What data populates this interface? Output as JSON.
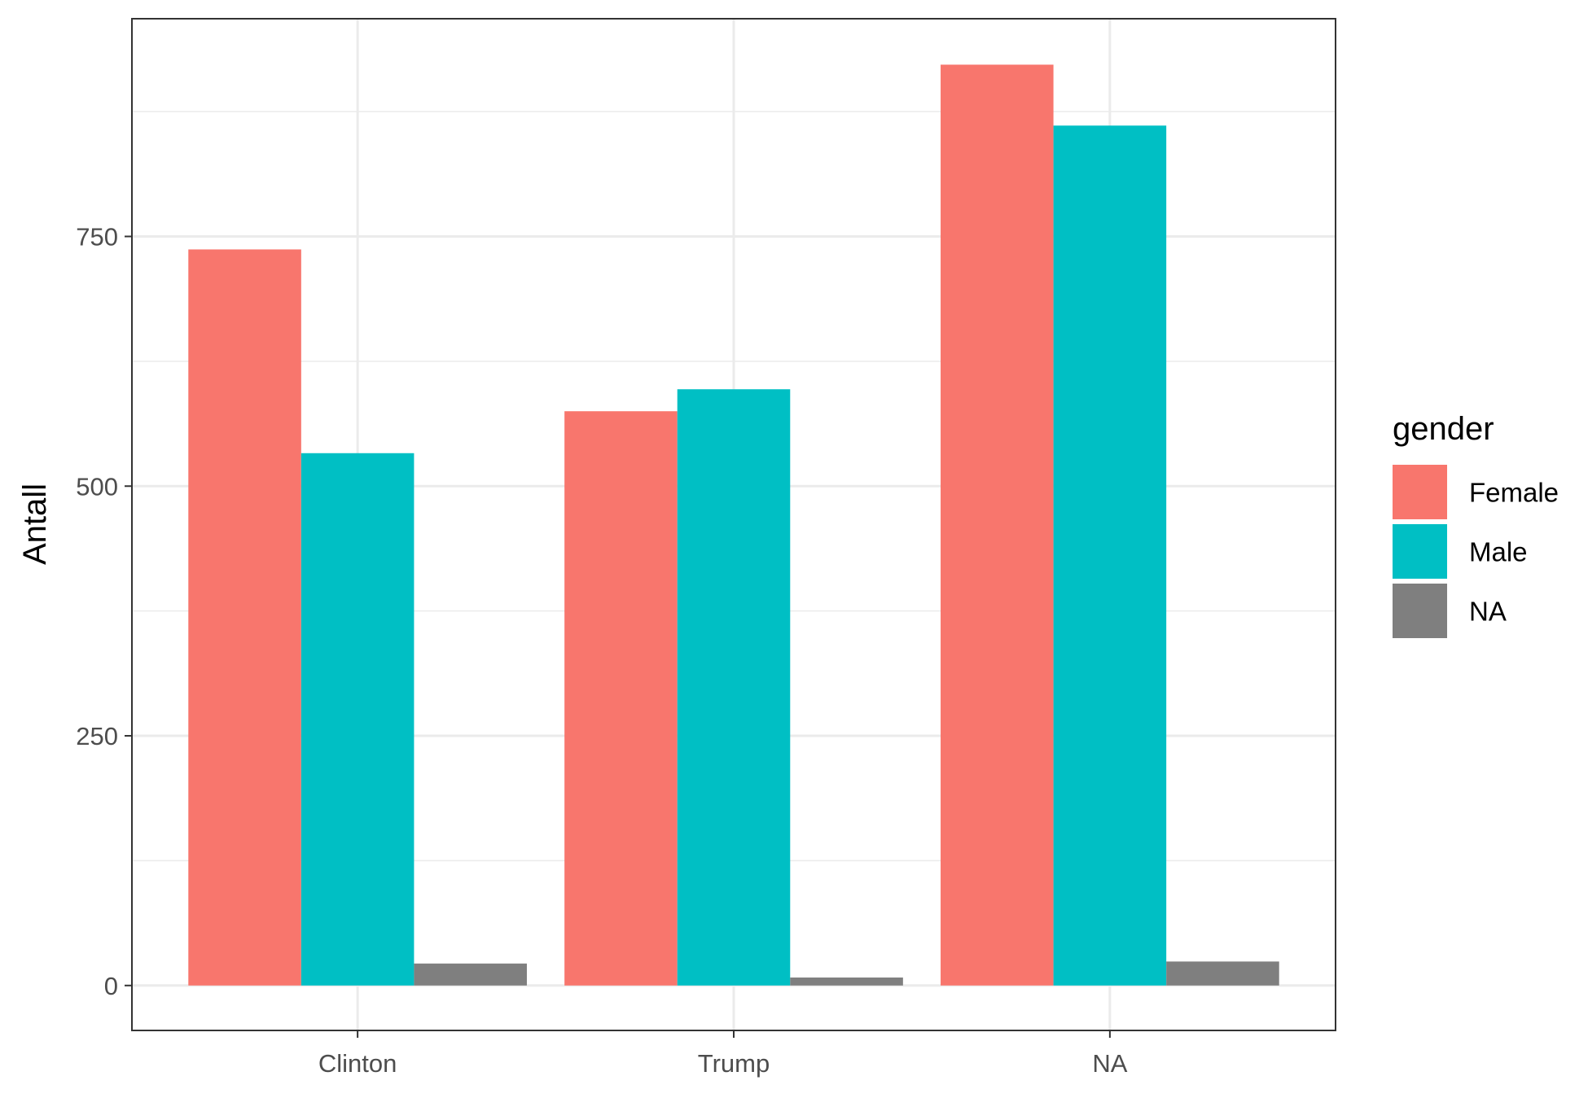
{
  "chart_data": {
    "type": "bar",
    "categories": [
      "Clinton",
      "Trump",
      "NA"
    ],
    "series": [
      {
        "name": "Female",
        "values": [
          737,
          575,
          922
        ],
        "color": "#F8766D"
      },
      {
        "name": "Male",
        "values": [
          533,
          597,
          861
        ],
        "color": "#00BFC4"
      },
      {
        "name": "NA",
        "values": [
          22,
          8,
          24
        ],
        "color": "#7F7F7F"
      }
    ],
    "xlabel": "",
    "ylabel": "Antall",
    "ylim": [
      -45,
      968
    ],
    "yticks": [
      0,
      250,
      500,
      750
    ],
    "yticks_minor": [
      125,
      375,
      625,
      875
    ],
    "grid": true,
    "legend": {
      "title": "gender",
      "position": "right"
    }
  }
}
